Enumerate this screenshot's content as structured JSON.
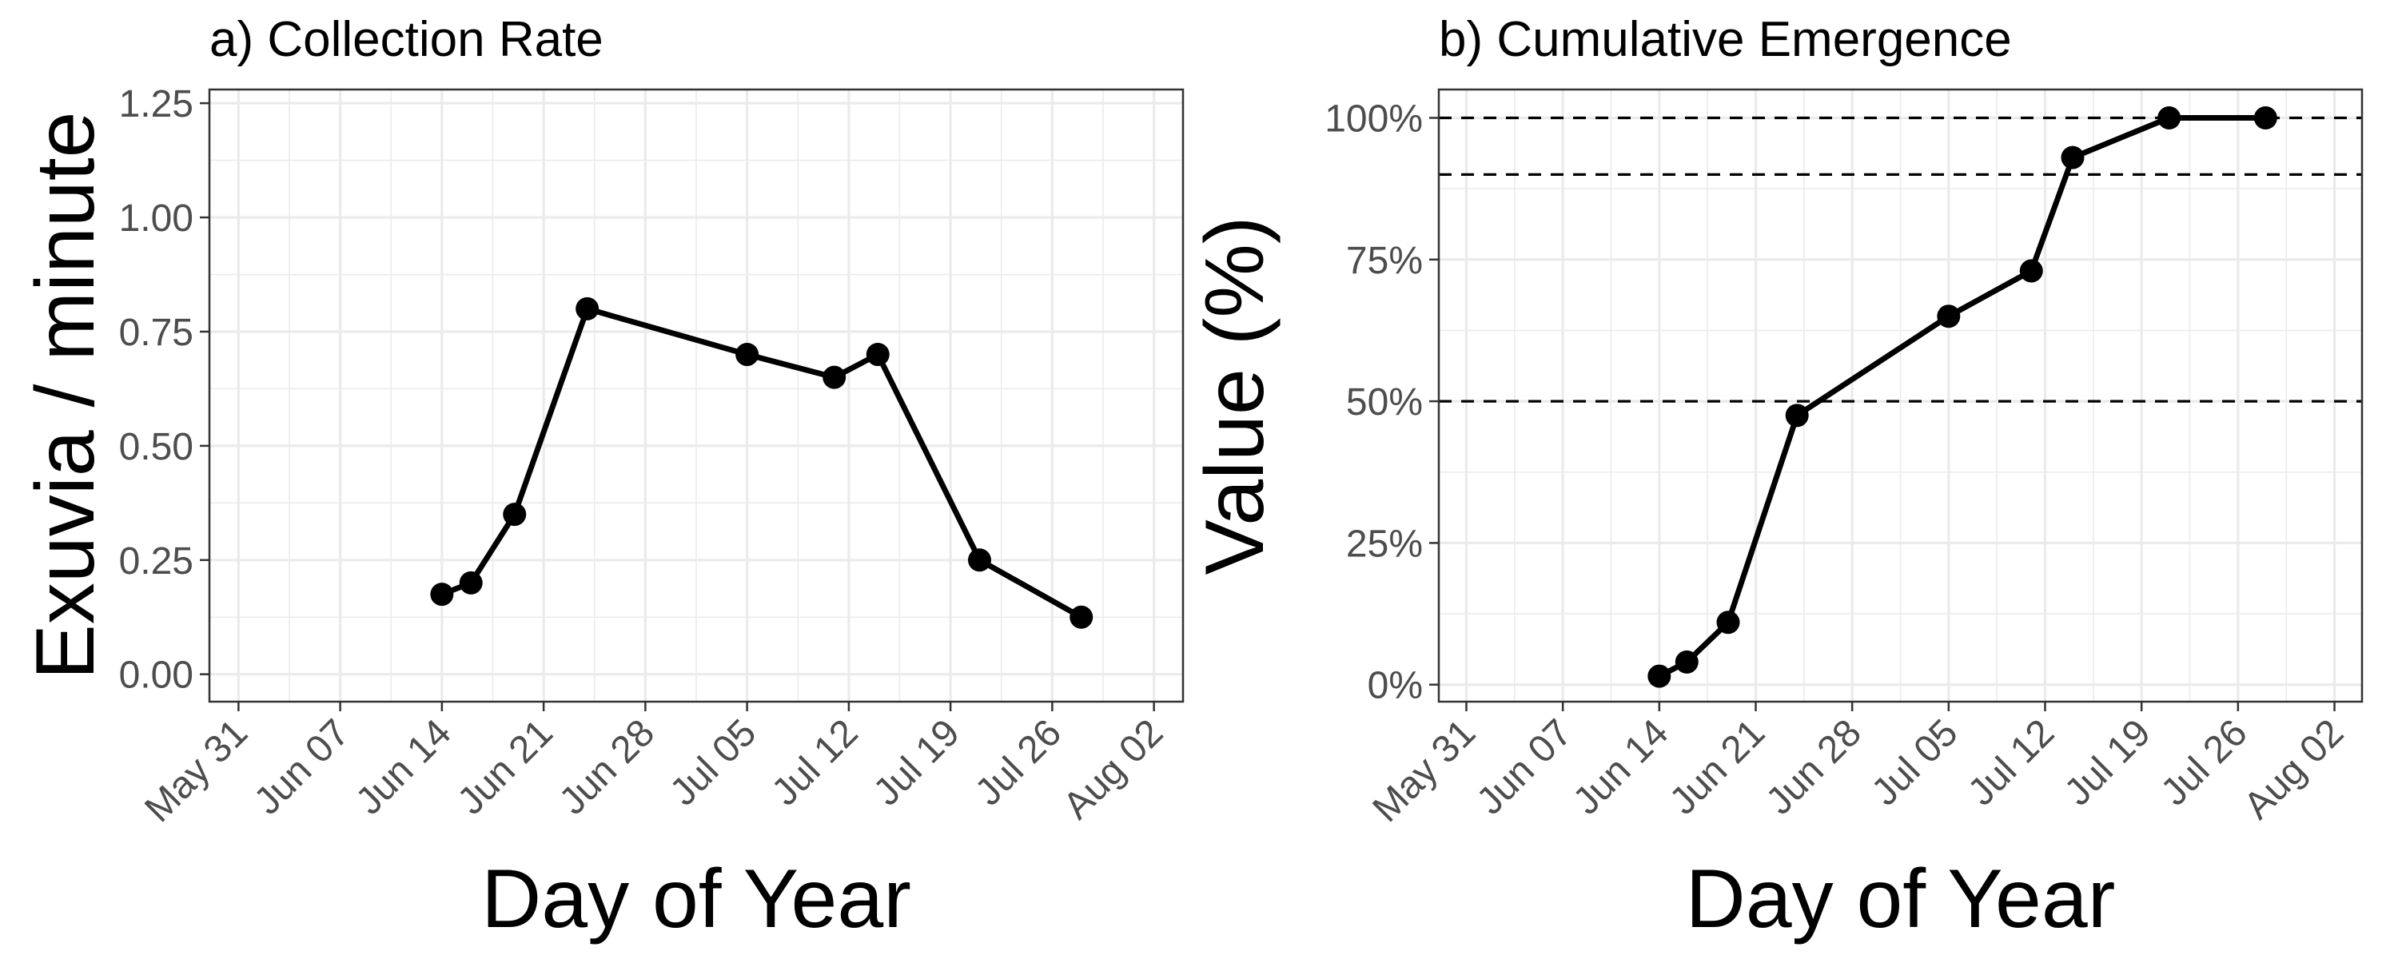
{
  "chart_data": [
    {
      "type": "line",
      "title": "a) Collection Rate",
      "xlabel": "Day of Year",
      "ylabel": "Exuvia / minute",
      "x_ticks": [
        "May 31",
        "Jun 07",
        "Jun 14",
        "Jun 21",
        "Jun 28",
        "Jul 05",
        "Jul 12",
        "Jul 19",
        "Jul 26",
        "Aug 02"
      ],
      "y_ticks": [
        "0.00",
        "0.25",
        "0.50",
        "0.75",
        "1.00",
        "1.25"
      ],
      "xlim": [
        "2021-05-29",
        "2021-08-04"
      ],
      "ylim": [
        -0.06,
        1.28
      ],
      "grid": true,
      "series": [
        {
          "color": "#000000",
          "points": [
            {
              "x": "2021-06-14",
              "y": 0.175
            },
            {
              "x": "2021-06-16",
              "y": 0.2
            },
            {
              "x": "2021-06-19",
              "y": 0.35
            },
            {
              "x": "2021-06-24",
              "y": 0.8
            },
            {
              "x": "2021-07-05",
              "y": 0.7
            },
            {
              "x": "2021-07-11",
              "y": 0.65
            },
            {
              "x": "2021-07-14",
              "y": 0.7
            },
            {
              "x": "2021-07-21",
              "y": 0.25
            },
            {
              "x": "2021-07-28",
              "y": 0.125
            }
          ]
        }
      ]
    },
    {
      "type": "line",
      "title": "b) Cumulative Emergence",
      "xlabel": "Day of Year",
      "ylabel": "Value (%)",
      "x_ticks": [
        "May 31",
        "Jun 07",
        "Jun 14",
        "Jun 21",
        "Jun 28",
        "Jul 05",
        "Jul 12",
        "Jul 19",
        "Jul 26",
        "Aug 02"
      ],
      "y_ticks": [
        "0%",
        "25%",
        "50%",
        "75%",
        "100%"
      ],
      "xlim": [
        "2021-05-29",
        "2021-08-04"
      ],
      "ylim": [
        -3,
        105
      ],
      "grid": true,
      "reference_lines": [
        {
          "y": 100,
          "style": "dashed"
        },
        {
          "y": 90,
          "style": "dashed"
        },
        {
          "y": 50,
          "style": "dashed"
        }
      ],
      "series": [
        {
          "color": "#000000",
          "points": [
            {
              "x": "2021-06-14",
              "y": 1.5
            },
            {
              "x": "2021-06-16",
              "y": 4
            },
            {
              "x": "2021-06-19",
              "y": 11
            },
            {
              "x": "2021-06-24",
              "y": 47.5
            },
            {
              "x": "2021-07-05",
              "y": 65
            },
            {
              "x": "2021-07-11",
              "y": 73
            },
            {
              "x": "2021-07-14",
              "y": 93
            },
            {
              "x": "2021-07-21",
              "y": 100
            },
            {
              "x": "2021-07-28",
              "y": 100
            }
          ]
        }
      ]
    }
  ]
}
